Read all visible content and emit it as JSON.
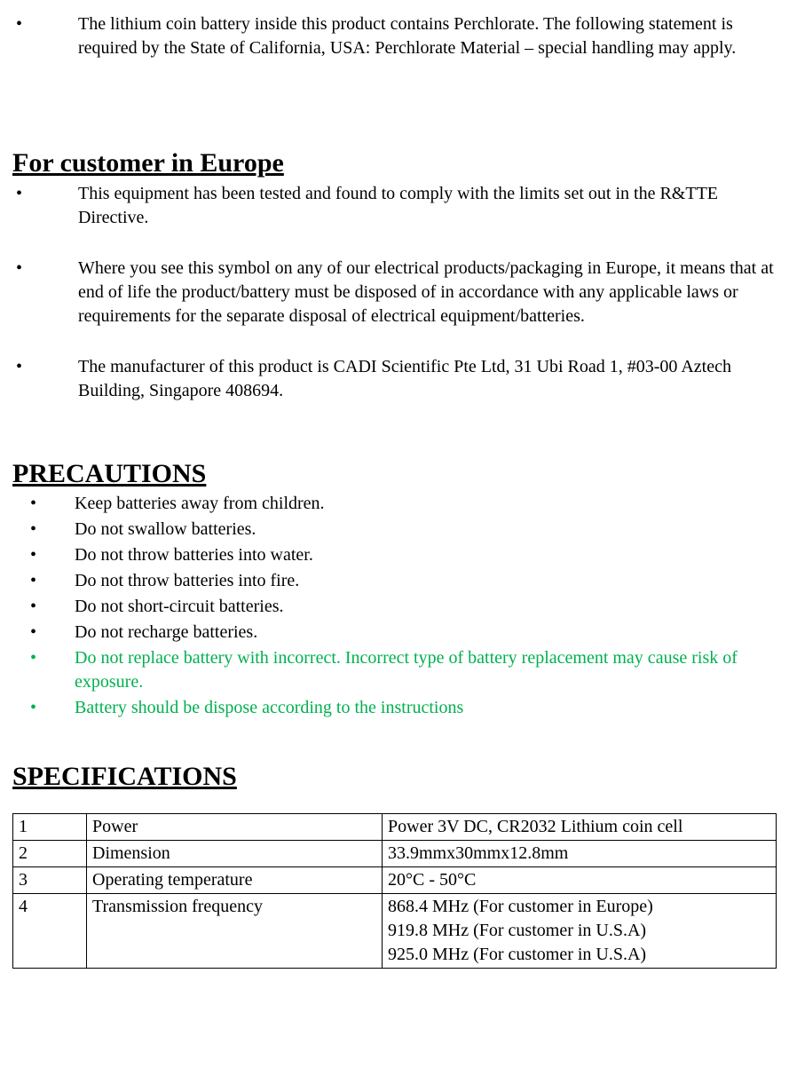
{
  "top_bullet": {
    "text": "The lithium coin battery inside this product contains Perchlorate. The following statement is required by the State of California, USA: Perchlorate Material – special handling may apply."
  },
  "europe_heading": "For customer in Europe",
  "europe_bullets": [
    "This equipment has been tested and found to comply with the limits set out in the R&TTE Directive.",
    "Where you see this symbol on any of our electrical products/packaging in Europe, it means that at end of life the product/battery must be disposed of in accordance with any applicable laws or requirements for the separate disposal of electrical equipment/batteries.",
    "The manufacturer of this product is CADI Scientific Pte Ltd, 31 Ubi Road 1, #03-00 Aztech Building, Singapore 408694."
  ],
  "precautions_heading": "PRECAUTIONS",
  "precautions_bullets": [
    {
      "text": "Keep batteries away from children.",
      "green": false
    },
    {
      "text": "Do not swallow batteries.",
      "green": false
    },
    {
      "text": "Do not throw batteries into water.",
      "green": false
    },
    {
      "text": "Do not throw batteries into fire.",
      "green": false
    },
    {
      "text": "Do not short-circuit batteries.",
      "green": false
    },
    {
      "text": "Do not recharge batteries.",
      "green": false
    },
    {
      "text": "Do not replace battery with incorrect. Incorrect type of battery replacement may cause risk of exposure.",
      "green": true
    },
    {
      "text": "Battery should be dispose according to the instructions",
      "green": true
    }
  ],
  "spec_heading": "SPECIFICATIONS",
  "spec_table": {
    "rows": [
      {
        "num": "1",
        "label": "Power",
        "value": "Power 3V DC, CR2032 Lithium coin cell"
      },
      {
        "num": "2",
        "label": "Dimension",
        "value": "33.9mmx30mmx12.8mm"
      },
      {
        "num": "3",
        "label": "Operating temperature",
        "value": "20°C - 50°C"
      },
      {
        "num": "4",
        "label": "Transmission frequency",
        "value": "868.4 MHz (For customer in Europe)\n919.8 MHz (For customer in U.S.A)\n925.0 MHz (For customer in U.S.A)\n"
      }
    ]
  }
}
